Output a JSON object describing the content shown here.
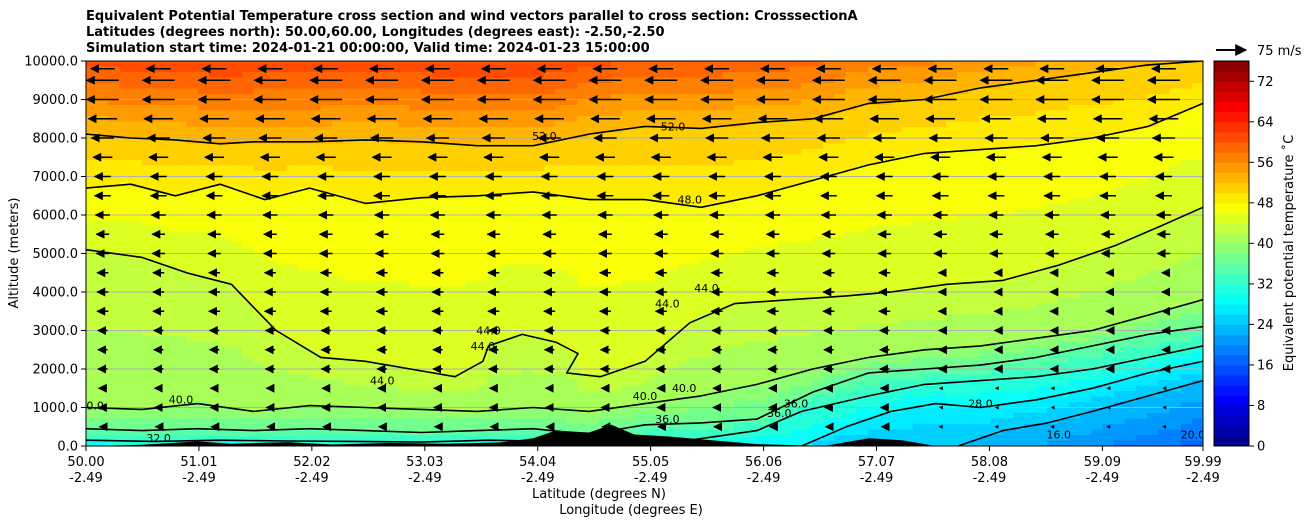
{
  "chart_data": {
    "type": "contourf",
    "title_lines": [
      "Equivalent Potential Temperature cross section and wind vectors parallel to cross section: CrosssectionA",
      "Latitudes (degrees north): 50.00,60.00, Longitudes (degrees east): -2.50,-2.50",
      "Simulation start time: 2024-01-21 00:00:00, Valid time: 2024-01-23 15:00:00"
    ],
    "ylabel": "Altitude (meters)",
    "xlabel_line1": "Latitude (degrees N)",
    "xlabel_line2": "Longitude (degrees E)",
    "xlim": [
      50.0,
      59.99
    ],
    "ylim": [
      0,
      10000
    ],
    "x_ticks": [
      {
        "lat": "50.00",
        "lon": "-2.49",
        "value": 50.0
      },
      {
        "lat": "51.01",
        "lon": "-2.49",
        "value": 51.01
      },
      {
        "lat": "52.02",
        "lon": "-2.49",
        "value": 52.02
      },
      {
        "lat": "53.03",
        "lon": "-2.49",
        "value": 53.03
      },
      {
        "lat": "54.04",
        "lon": "-2.49",
        "value": 54.04
      },
      {
        "lat": "55.05",
        "lon": "-2.49",
        "value": 55.05
      },
      {
        "lat": "56.06",
        "lon": "-2.49",
        "value": 56.06
      },
      {
        "lat": "57.07",
        "lon": "-2.49",
        "value": 57.07
      },
      {
        "lat": "58.08",
        "lon": "-2.49",
        "value": 58.08
      },
      {
        "lat": "59.09",
        "lon": "-2.49",
        "value": 59.09
      },
      {
        "lat": "59.99",
        "lon": "-2.49",
        "value": 59.99
      }
    ],
    "y_ticks": [
      {
        "label": "0.0",
        "value": 0
      },
      {
        "label": "1000.0",
        "value": 1000
      },
      {
        "label": "2000.0",
        "value": 2000
      },
      {
        "label": "3000.0",
        "value": 3000
      },
      {
        "label": "4000.0",
        "value": 4000
      },
      {
        "label": "5000.0",
        "value": 5000
      },
      {
        "label": "6000.0",
        "value": 6000
      },
      {
        "label": "7000.0",
        "value": 7000
      },
      {
        "label": "8000.0",
        "value": 8000
      },
      {
        "label": "9000.0",
        "value": 9000
      },
      {
        "label": "10000.0",
        "value": 10000
      }
    ],
    "grid": "horizontal",
    "colorbar": {
      "label": "Equivalent potential temperature $^\\circ$C",
      "label_text": "Equivalent potential temperature ˚C",
      "min": 0,
      "max": 76,
      "step": 2,
      "ticks": [
        "0",
        "8",
        "16",
        "24",
        "32",
        "40",
        "48",
        "56",
        "64",
        "72"
      ],
      "tick_values": [
        0,
        8,
        16,
        24,
        32,
        40,
        48,
        56,
        64,
        72
      ],
      "colormap": "jet"
    },
    "quiver_key": {
      "label": "75 m/s",
      "speed": 75
    },
    "contour_labels": [
      {
        "text": "52.0",
        "lat": 54.1,
        "alt": 7950
      },
      {
        "text": "52.0",
        "lat": 55.25,
        "alt": 8200
      },
      {
        "text": "48.0",
        "lat": 55.4,
        "alt": 6300
      },
      {
        "text": "44.0",
        "lat": 55.55,
        "alt": 4000
      },
      {
        "text": "44.0",
        "lat": 55.2,
        "alt": 3600
      },
      {
        "text": "44.0",
        "lat": 53.6,
        "alt": 2900
      },
      {
        "text": "44.0",
        "lat": 53.55,
        "alt": 2500
      },
      {
        "text": "44.0",
        "lat": 52.65,
        "alt": 1600
      },
      {
        "text": "40.0",
        "lat": 50.85,
        "alt": 1100
      },
      {
        "text": "40.0",
        "lat": 50.05,
        "alt": 950
      },
      {
        "text": "40.0",
        "lat": 55.0,
        "alt": 1200
      },
      {
        "text": "40.0",
        "lat": 55.35,
        "alt": 1400
      },
      {
        "text": "36.0",
        "lat": 55.2,
        "alt": 600
      },
      {
        "text": "32.0",
        "lat": 50.65,
        "alt": 100
      },
      {
        "text": "36.0",
        "lat": 56.2,
        "alt": 750
      },
      {
        "text": "36.0",
        "lat": 56.35,
        "alt": 1000
      },
      {
        "text": "28.0",
        "lat": 58.0,
        "alt": 1000
      },
      {
        "text": "16.0",
        "lat": 58.7,
        "alt": 200
      },
      {
        "text": "20.0",
        "lat": 59.9,
        "alt": 200
      }
    ],
    "theta_e_contours": [
      {
        "level": 52,
        "lat": [
          50.0,
          50.4,
          50.8,
          51.2,
          51.5,
          52.0,
          52.5,
          53.0,
          53.5,
          54.0,
          54.5,
          55.0,
          55.5,
          56.0,
          56.5,
          57.0,
          57.5,
          58.0,
          58.5,
          59.0,
          59.5,
          59.99
        ],
        "alt": [
          8100,
          8000,
          7950,
          7850,
          7900,
          7900,
          7950,
          7900,
          7800,
          7800,
          8100,
          8300,
          8250,
          8400,
          8500,
          8900,
          9000,
          9300,
          9500,
          9700,
          9900,
          10000
        ]
      },
      {
        "level": 48,
        "lat": [
          50.0,
          50.4,
          50.8,
          51.2,
          51.6,
          52.0,
          52.5,
          53.0,
          53.5,
          54.0,
          54.5,
          55.0,
          55.5,
          56.0,
          56.5,
          57.0,
          57.5,
          58.0,
          58.5,
          59.0,
          59.5,
          59.99
        ],
        "alt": [
          6700,
          6800,
          6500,
          6800,
          6400,
          6700,
          6300,
          6450,
          6500,
          6600,
          6400,
          6400,
          6200,
          6500,
          6900,
          7300,
          7600,
          7700,
          7800,
          8000,
          8300,
          8900
        ]
      },
      {
        "level": 44,
        "lat": [
          50.0,
          50.5,
          50.9,
          51.3,
          51.5,
          51.7,
          52.1,
          52.5,
          52.9,
          53.3,
          53.55,
          53.6,
          53.9,
          54.2,
          54.4,
          54.3,
          54.6,
          55.0,
          55.4,
          55.8,
          56.3,
          56.8,
          57.2,
          57.7,
          58.2,
          58.7,
          59.2,
          59.6,
          59.99
        ],
        "alt": [
          5100,
          4900,
          4500,
          4200,
          3600,
          3000,
          2300,
          2200,
          2000,
          1800,
          2200,
          2600,
          2900,
          2700,
          2400,
          1900,
          1800,
          2200,
          3200,
          3700,
          3800,
          3900,
          4000,
          4200,
          4300,
          4700,
          5200,
          5700,
          6200
        ]
      },
      {
        "level": 40,
        "lat": [
          50.0,
          50.5,
          51.0,
          51.5,
          52.0,
          52.5,
          53.0,
          53.5,
          54.0,
          54.5,
          55.0,
          55.5,
          56.0,
          56.5,
          57.0,
          57.5,
          58.0,
          58.5,
          59.0,
          59.5,
          59.99
        ],
        "alt": [
          1000,
          950,
          1100,
          900,
          1050,
          1000,
          950,
          900,
          1000,
          900,
          1100,
          1300,
          1600,
          2000,
          2300,
          2500,
          2600,
          2800,
          3000,
          3400,
          3800
        ]
      },
      {
        "level": 36,
        "lat": [
          50.0,
          50.5,
          51.0,
          51.5,
          52.0,
          52.5,
          53.0,
          53.5,
          54.0,
          54.5,
          55.0,
          55.5,
          56.0,
          56.5,
          57.0,
          57.5,
          58.0,
          58.5,
          59.0,
          59.5,
          59.99
        ],
        "alt": [
          450,
          400,
          450,
          400,
          450,
          400,
          350,
          400,
          450,
          300,
          550,
          600,
          700,
          1400,
          1900,
          2000,
          2100,
          2300,
          2600,
          2900,
          3100
        ]
      },
      {
        "level": 32,
        "lat": [
          50.0,
          50.6,
          51.2,
          51.8,
          52.4,
          53.0,
          53.6,
          54.2,
          54.8,
          55.4,
          56.0,
          56.4,
          57.0,
          57.5,
          58.0,
          58.5,
          59.0,
          59.5,
          59.99
        ],
        "alt": [
          150,
          120,
          150,
          130,
          120,
          100,
          150,
          120,
          200,
          150,
          400,
          900,
          1300,
          1600,
          1700,
          1800,
          2000,
          2300,
          2600
        ]
      },
      {
        "level": 28,
        "lat": [
          56.4,
          56.8,
          57.2,
          57.6,
          58.0,
          58.5,
          59.0,
          59.5,
          59.99
        ],
        "alt": [
          0,
          500,
          900,
          1100,
          1000,
          1200,
          1500,
          1900,
          2200
        ]
      },
      {
        "level": 24,
        "lat": [
          57.8,
          58.2,
          58.6,
          59.0,
          59.5,
          59.99
        ],
        "alt": [
          0,
          400,
          600,
          900,
          1300,
          1700
        ]
      }
    ],
    "wind_arrow_rows": [
      {
        "alt": 9800,
        "u": -15
      },
      {
        "alt": 9500,
        "u": -20
      },
      {
        "alt": 9000,
        "u": -20
      },
      {
        "alt": 8500,
        "u": -18
      },
      {
        "alt": 8000,
        "u": -14
      },
      {
        "alt": 7500,
        "u": -12
      },
      {
        "alt": 7000,
        "u": -10
      },
      {
        "alt": 6500,
        "u": -10
      },
      {
        "alt": 6000,
        "u": -9
      },
      {
        "alt": 5500,
        "u": -8
      },
      {
        "alt": 5000,
        "u": -8
      },
      {
        "alt": 4500,
        "u": -7
      },
      {
        "alt": 4000,
        "u": -7
      },
      {
        "alt": 3500,
        "u": -7
      },
      {
        "alt": 3000,
        "u": -6
      },
      {
        "alt": 2500,
        "u": -6
      },
      {
        "alt": 2000,
        "u": -6
      },
      {
        "alt": 1500,
        "u": -5
      },
      {
        "alt": 1000,
        "u": -5
      },
      {
        "alt": 500,
        "u": -4
      }
    ],
    "terrain": {
      "lat": [
        50.0,
        50.5,
        51.0,
        51.3,
        51.8,
        52.2,
        52.7,
        53.2,
        53.7,
        54.0,
        54.2,
        54.5,
        54.7,
        54.9,
        55.2,
        55.6,
        56.0,
        56.6,
        57.0,
        57.3,
        57.6,
        58.0,
        59.99
      ],
      "alt": [
        0,
        30,
        120,
        60,
        100,
        40,
        80,
        60,
        90,
        200,
        400,
        350,
        550,
        300,
        250,
        150,
        50,
        0,
        200,
        150,
        0,
        0,
        0
      ]
    }
  }
}
